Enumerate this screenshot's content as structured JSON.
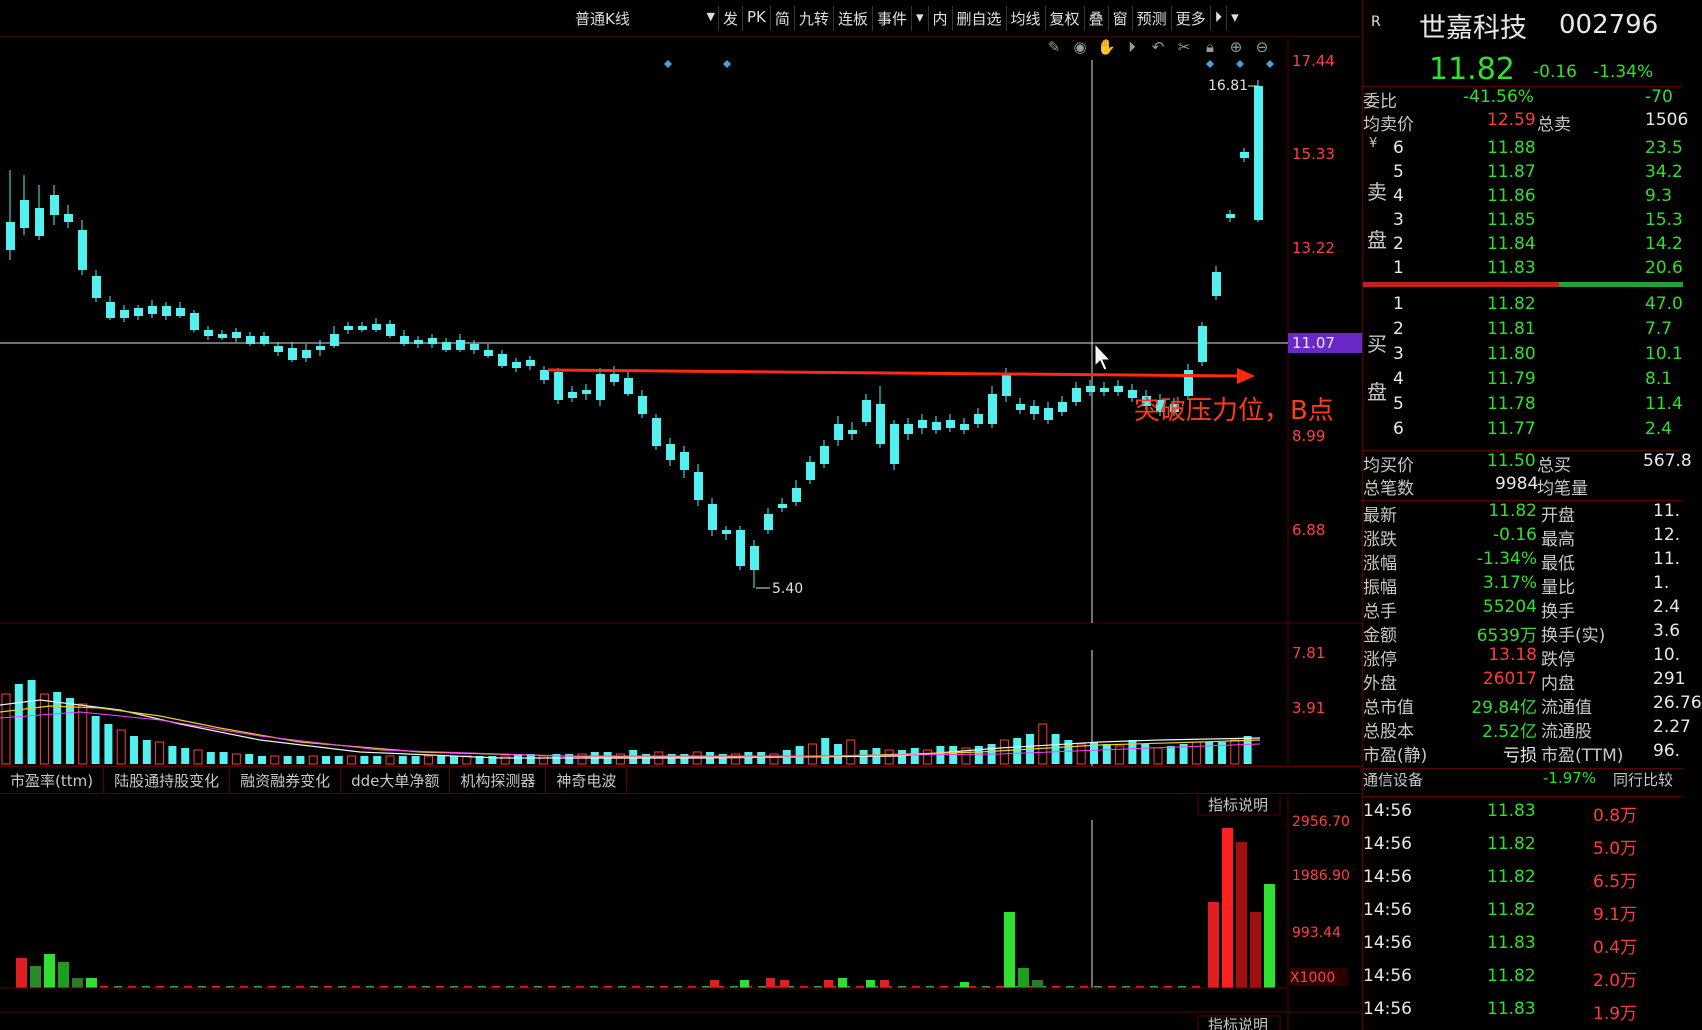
{
  "toolbar": {
    "kline_mode": "普通K线",
    "items": [
      "发",
      "PK",
      "简",
      "九转",
      "连板",
      "事件",
      "▾",
      "内",
      "删自选",
      "均线",
      "复权",
      "叠",
      "窗",
      "预测",
      "更多",
      "⏵",
      "▾"
    ],
    "tool_icons": [
      "pen-icon",
      "eye-icon",
      "hand-icon",
      "play-icon",
      "undo-icon",
      "cut-icon",
      "lock-icon",
      "zoom-in-icon",
      "zoom-out-icon"
    ]
  },
  "price_axis": [
    "17.44",
    "15.33",
    "13.22",
    "11.07",
    "8.99",
    "6.88"
  ],
  "price_marker": "11.07",
  "high_label": "16.81",
  "low_label": "5.40",
  "annotation": "突破压力位，B点",
  "volume_axis": [
    "7.81",
    "3.91"
  ],
  "indicator_axis": [
    "2956.70",
    "1986.90",
    "993.44",
    "X1000"
  ],
  "indicator_button": "指标说明",
  "tabs": [
    "市盈率(ttm)",
    "陆股通持股变化",
    "融资融券变化",
    "dde大单净额",
    "机构探测器",
    "神奇电波"
  ],
  "quote": {
    "r_badge": "R",
    "name": "世嘉科技",
    "code": "002796",
    "price": "11.82",
    "change": "-0.16",
    "change_pct": "-1.34%",
    "committee_ratio_label": "委比",
    "committee_ratio": "-41.56%",
    "committee_diff": "-70",
    "avg_sell_label": "均卖价",
    "avg_sell": "12.59",
    "total_sell_label": "总卖",
    "total_sell": "1506",
    "sell_side_label": "卖盘",
    "buy_side_label": "买盘",
    "sell": [
      {
        "lv": "6",
        "price": "11.88",
        "vol": "23.5"
      },
      {
        "lv": "5",
        "price": "11.87",
        "vol": "34.2"
      },
      {
        "lv": "4",
        "price": "11.86",
        "vol": "9.3"
      },
      {
        "lv": "3",
        "price": "11.85",
        "vol": "15.3"
      },
      {
        "lv": "2",
        "price": "11.84",
        "vol": "14.2"
      },
      {
        "lv": "1",
        "price": "11.83",
        "vol": "20.6"
      }
    ],
    "buy": [
      {
        "lv": "1",
        "price": "11.82",
        "vol": "47.0"
      },
      {
        "lv": "2",
        "price": "11.81",
        "vol": "7.7"
      },
      {
        "lv": "3",
        "price": "11.80",
        "vol": "10.1"
      },
      {
        "lv": "4",
        "price": "11.79",
        "vol": "8.1"
      },
      {
        "lv": "5",
        "price": "11.78",
        "vol": "11.4"
      },
      {
        "lv": "6",
        "price": "11.77",
        "vol": "2.4"
      }
    ],
    "avg_buy_label": "均买价",
    "avg_buy": "11.50",
    "total_buy_label": "总买",
    "total_buy": "567.8",
    "trades_label": "总笔数",
    "trades": "9984",
    "avg_lot_label": "均笔量",
    "stats": [
      {
        "l1": "最新",
        "v1": "11.82",
        "c1": "green",
        "l2": "开盘",
        "v2": "11."
      },
      {
        "l1": "涨跌",
        "v1": "-0.16",
        "c1": "green",
        "l2": "最高",
        "v2": "12."
      },
      {
        "l1": "涨幅",
        "v1": "-1.34%",
        "c1": "green",
        "l2": "最低",
        "v2": "11."
      },
      {
        "l1": "振幅",
        "v1": "3.17%",
        "c1": "green",
        "l2": "量比",
        "v2": "1."
      },
      {
        "l1": "总手",
        "v1": "55204",
        "c1": "green",
        "l2": "换手",
        "v2": "2.4"
      },
      {
        "l1": "金额",
        "v1": "6539万",
        "c1": "green",
        "l2": "换手(实)",
        "v2": "3.6"
      },
      {
        "l1": "涨停",
        "v1": "13.18",
        "c1": "red",
        "l2": "跌停",
        "v2": "10."
      },
      {
        "l1": "外盘",
        "v1": "26017",
        "c1": "red",
        "l2": "内盘",
        "v2": "291"
      },
      {
        "l1": "总市值",
        "v1": "29.84亿",
        "c1": "green",
        "l2": "流通值",
        "v2": "26.76"
      },
      {
        "l1": "总股本",
        "v1": "2.52亿",
        "c1": "green",
        "l2": "流通股",
        "v2": "2.27"
      },
      {
        "l1": "市盈(静)",
        "v1": "亏损",
        "c1": "white",
        "l2": "市盈(TTM)",
        "v2": "96."
      }
    ],
    "sector_name": "通信设备",
    "sector_pct": "-1.97%",
    "sector_compare": "同行比较",
    "ticks": [
      {
        "time": "14:56",
        "price": "11.83",
        "vol": "0.8万"
      },
      {
        "time": "14:56",
        "price": "11.82",
        "vol": "5.0万"
      },
      {
        "time": "14:56",
        "price": "11.82",
        "vol": "6.5万"
      },
      {
        "time": "14:56",
        "price": "11.82",
        "vol": "9.1万"
      },
      {
        "time": "14:56",
        "price": "11.83",
        "vol": "0.4万"
      },
      {
        "time": "14:56",
        "price": "11.82",
        "vol": "2.0万"
      },
      {
        "time": "14:56",
        "price": "11.83",
        "vol": "1.9万"
      }
    ]
  },
  "colors": {
    "up": "#ff3b3b",
    "down": "#54f0f0",
    "grid": "#5a0000",
    "ma": "#f0f0f0"
  }
}
